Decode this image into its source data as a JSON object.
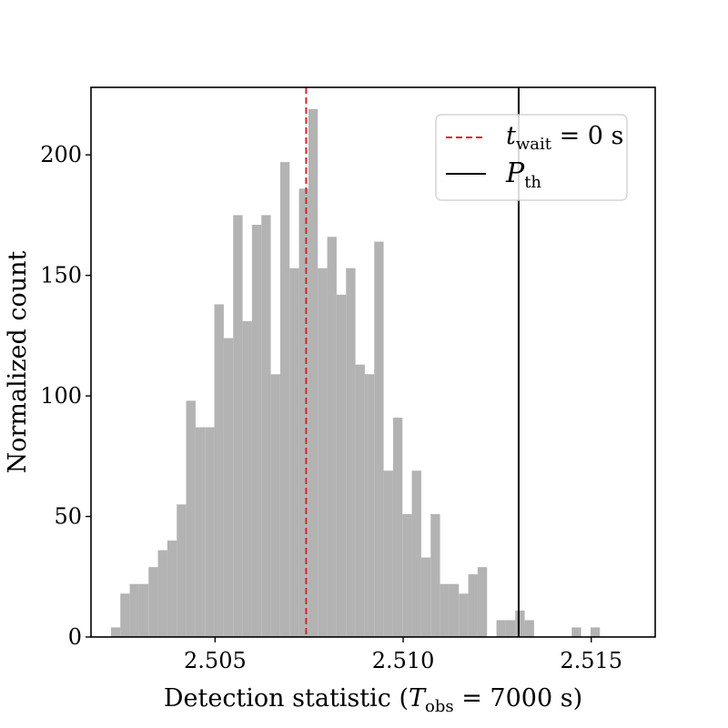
{
  "chart_data": {
    "type": "bar",
    "title": "",
    "xlabel": "Detection statistic (T_obs = 7000 s)",
    "ylabel": "Normalized count",
    "xlim": [
      2.5017,
      2.5167
    ],
    "ylim": [
      0,
      228
    ],
    "xticks": [
      2.505,
      2.51,
      2.515
    ],
    "xtick_labels": [
      "2.505",
      "2.510",
      "2.515"
    ],
    "yticks": [
      0,
      50,
      100,
      150,
      200
    ],
    "ytick_labels": [
      "0",
      "50",
      "100",
      "150",
      "200"
    ],
    "grid": false,
    "bar_color": "#b3b3b3",
    "bin_edges_start": 2.50223,
    "bin_width": 0.00025,
    "bin_values": [
      4,
      18,
      22,
      22,
      29,
      36,
      40,
      55,
      98,
      87,
      87,
      138,
      124,
      175,
      131,
      171,
      175,
      109,
      197,
      153,
      186,
      219,
      153,
      166,
      142,
      153,
      113,
      109,
      164,
      69,
      91,
      51,
      69,
      33,
      51,
      22,
      22,
      18,
      26,
      29,
      0,
      7,
      7,
      11,
      7,
      0,
      0,
      0,
      0,
      4,
      0,
      4
    ],
    "vertical_lines": [
      {
        "x": 2.50742,
        "color": "#d62728",
        "style": "dashed",
        "label": "t_wait = 0 s"
      },
      {
        "x": 2.51307,
        "color": "#000000",
        "style": "solid",
        "label": "P_th"
      }
    ],
    "legend": {
      "placement": "top-right",
      "entries": [
        {
          "label": "t_wait = 0 s",
          "color": "#d62728",
          "style": "dashed"
        },
        {
          "label": "P_th",
          "color": "#000000",
          "style": "solid"
        }
      ]
    }
  }
}
